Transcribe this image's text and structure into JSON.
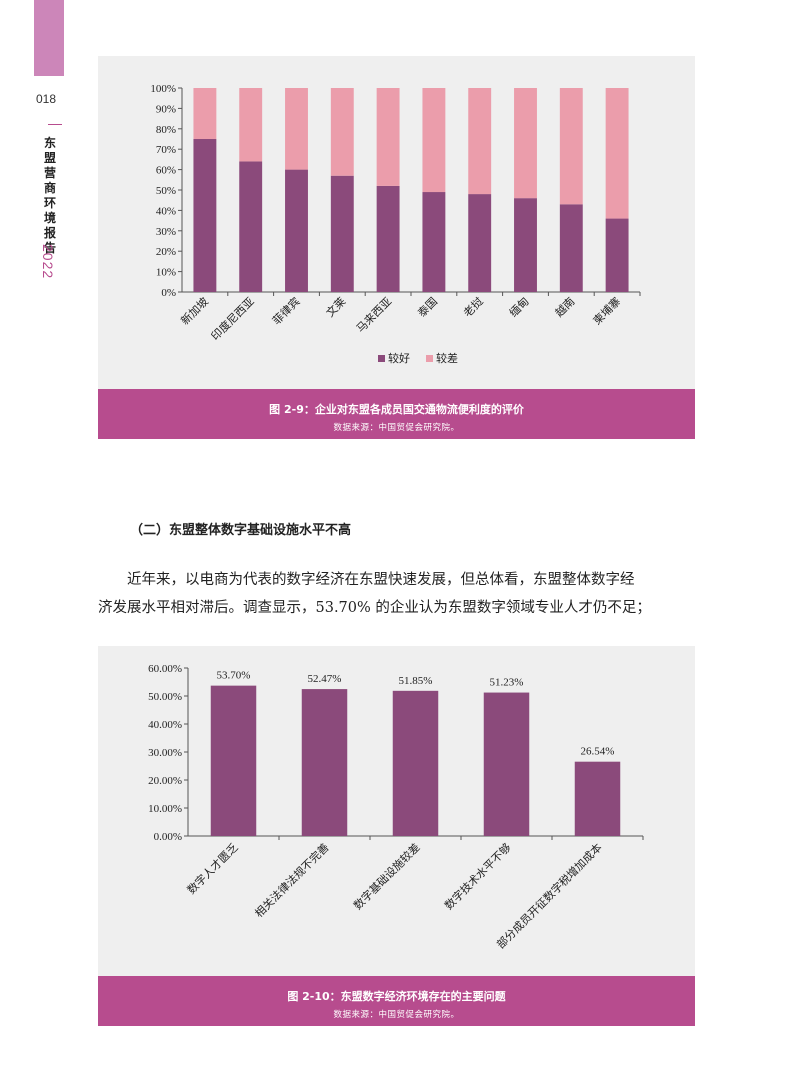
{
  "sidebar": {
    "page_number": "018",
    "title_chars": [
      "东",
      "盟",
      "营",
      "商",
      "环",
      "境",
      "报",
      "告"
    ],
    "year": "2022"
  },
  "figure1": {
    "caption": "图 2-9：企业对东盟各成员国交通物流便利度的评价",
    "source": "数据来源：中国贸促会研究院。"
  },
  "section": {
    "heading": "（二）东盟整体数字基础设施水平不高",
    "paragraph_line1": "近年来，以电商为代表的数字经济在东盟快速发展，但总体看，东盟整体数字经",
    "paragraph_line2": "济发展水平相对滞后。调查显示，53.70% 的企业认为东盟数字领域专业人才仍不足；"
  },
  "figure2": {
    "caption": "图 2-10：东盟数字经济环境存在的主要问题",
    "source": "数据来源：中国贸促会研究院。"
  },
  "colors": {
    "dark": "#8b4a7b",
    "light": "#eb9dab",
    "accent": "#b74c8e",
    "side_tab": "#cc86b9",
    "panel_bg": "#efefef"
  },
  "chart_data": [
    {
      "type": "bar",
      "stacked": true,
      "categories": [
        "新加坡",
        "印度尼西亚",
        "菲律宾",
        "文莱",
        "马来西亚",
        "泰国",
        "老挝",
        "缅甸",
        "越南",
        "柬埔寨"
      ],
      "series": [
        {
          "name": "较好",
          "values": [
            75,
            64,
            60,
            57,
            52,
            49,
            48,
            46,
            43,
            36
          ]
        },
        {
          "name": "较差",
          "values": [
            25,
            36,
            40,
            43,
            48,
            51,
            52,
            54,
            57,
            64
          ]
        }
      ],
      "y_ticks": [
        "0%",
        "10%",
        "20%",
        "30%",
        "40%",
        "50%",
        "60%",
        "70%",
        "80%",
        "90%",
        "100%"
      ],
      "ylim": [
        0,
        100
      ],
      "grid": false,
      "legend": "bottom"
    },
    {
      "type": "bar",
      "categories": [
        "数字人才匮乏",
        "相关法律法规不完善",
        "数字基础设施较差",
        "数字技术水平不够",
        "部分成员开征数字税增加成本"
      ],
      "values": [
        53.7,
        52.47,
        51.85,
        51.23,
        26.54
      ],
      "value_labels": [
        "53.70%",
        "52.47%",
        "51.85%",
        "51.23%",
        "26.54%"
      ],
      "y_ticks": [
        "0.00%",
        "10.00%",
        "20.00%",
        "30.00%",
        "40.00%",
        "50.00%",
        "60.00%"
      ],
      "ylim": [
        0,
        60
      ],
      "grid": false
    }
  ]
}
